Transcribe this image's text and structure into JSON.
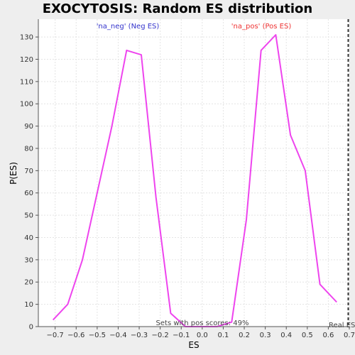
{
  "chart_data": {
    "type": "line",
    "title": "EXOCYTOSIS: Random ES distribution",
    "xlabel": "ES",
    "ylabel": "P(ES)",
    "xlim": [
      -0.78,
      0.7
    ],
    "ylim": [
      0,
      138
    ],
    "xticks": [
      -0.7,
      -0.6,
      -0.5,
      -0.4,
      -0.3,
      -0.2,
      -0.1,
      0.0,
      0.1,
      0.2,
      0.3,
      0.4,
      0.5,
      0.6,
      0.7
    ],
    "xtick_labels": [
      "−0.7",
      "−0.6",
      "−0.5",
      "−0.4",
      "−0.3",
      "−0.2",
      "−0.1",
      "0.0",
      "0.1",
      "0.2",
      "0.3",
      "0.4",
      "0.5",
      "0.6",
      "0.7"
    ],
    "yticks": [
      0,
      10,
      20,
      30,
      40,
      50,
      60,
      70,
      80,
      90,
      100,
      110,
      120,
      130
    ],
    "grid": true,
    "series": [
      {
        "color": "#ee44ee",
        "x": [
          -0.71,
          -0.64,
          -0.57,
          -0.43,
          -0.36,
          -0.29,
          -0.22,
          -0.15,
          -0.08,
          0.07,
          0.14,
          0.21,
          0.28,
          0.35,
          0.42,
          0.49,
          0.56,
          0.64
        ],
        "y": [
          3,
          10,
          30,
          90,
          124,
          122,
          58,
          6,
          0,
          0,
          2,
          48,
          124,
          131,
          86,
          70,
          19,
          11
        ]
      }
    ],
    "annotations": {
      "neg_label": "'na_neg' (Neg ES)",
      "pos_label": "'na_pos' (Pos ES)",
      "sets_label": "Sets with pos scores: 49%",
      "real_label": "Real ES"
    },
    "colors": {
      "neg": "#3333cc",
      "pos": "#ee3333",
      "plot_bg": "#ffffff",
      "page_bg": "#eeeeee",
      "grid": "#e4e4e4"
    }
  }
}
